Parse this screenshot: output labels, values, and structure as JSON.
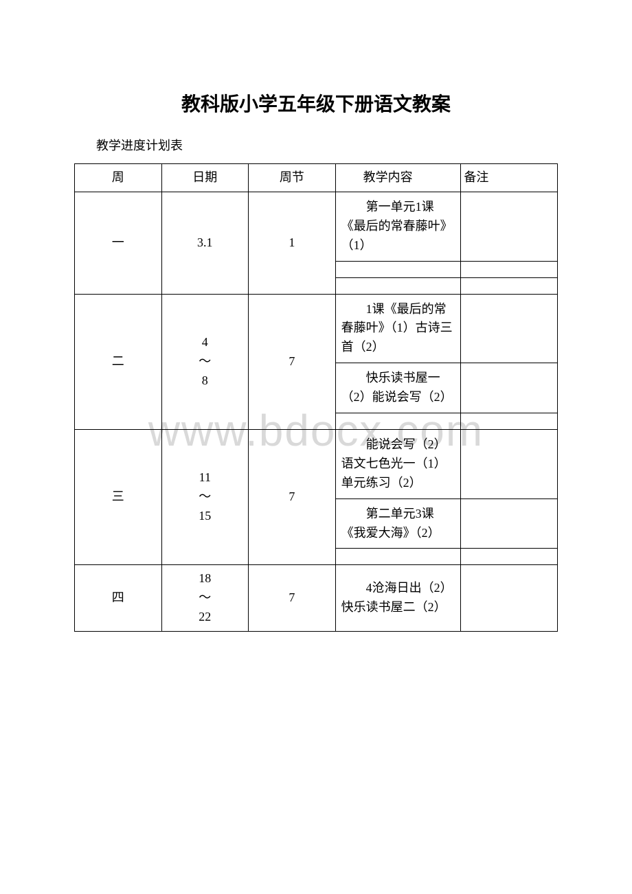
{
  "title": "教科版小学五年级下册语文教案",
  "subtitle": "教学进度计划表",
  "watermark": "www.bdocx.com",
  "headers": {
    "week": "周",
    "date": "日期",
    "sessions": "周节",
    "content": "教学内容",
    "notes": "备注"
  },
  "rows": [
    {
      "week": "一",
      "date": "3.1",
      "sessions": "1",
      "contents": [
        "第一单元1课《最后的常春藤叶》（1）",
        "",
        ""
      ],
      "notes": [
        "",
        "",
        ""
      ]
    },
    {
      "week": "二",
      "date": "4\n～\n8",
      "sessions": "7",
      "contents": [
        "1课《最后的常春藤叶》（1）古诗三首（2）",
        "快乐读书屋一（2）能说会写（2）",
        ""
      ],
      "notes": [
        "",
        "",
        ""
      ]
    },
    {
      "week": "三",
      "date": "11\n～\n15",
      "sessions": "7",
      "contents": [
        "能说会写（2）语文七色光一（1）单元练习（2）",
        "第二单元3课《我爱大海》（2）",
        ""
      ],
      "notes": [
        "",
        "",
        ""
      ]
    },
    {
      "week": "四",
      "date": "18\n～\n22",
      "sessions": "7",
      "contents": [
        "4沧海日出（2）快乐读书屋二（2）"
      ],
      "notes": [
        ""
      ]
    }
  ],
  "colors": {
    "background": "#ffffff",
    "text": "#000000",
    "border": "#000000",
    "watermark": "#d9d9d9"
  },
  "fonts": {
    "title_family": "SimHei",
    "body_family": "SimSun",
    "title_size_pt": 21,
    "body_size_pt": 13.5
  }
}
